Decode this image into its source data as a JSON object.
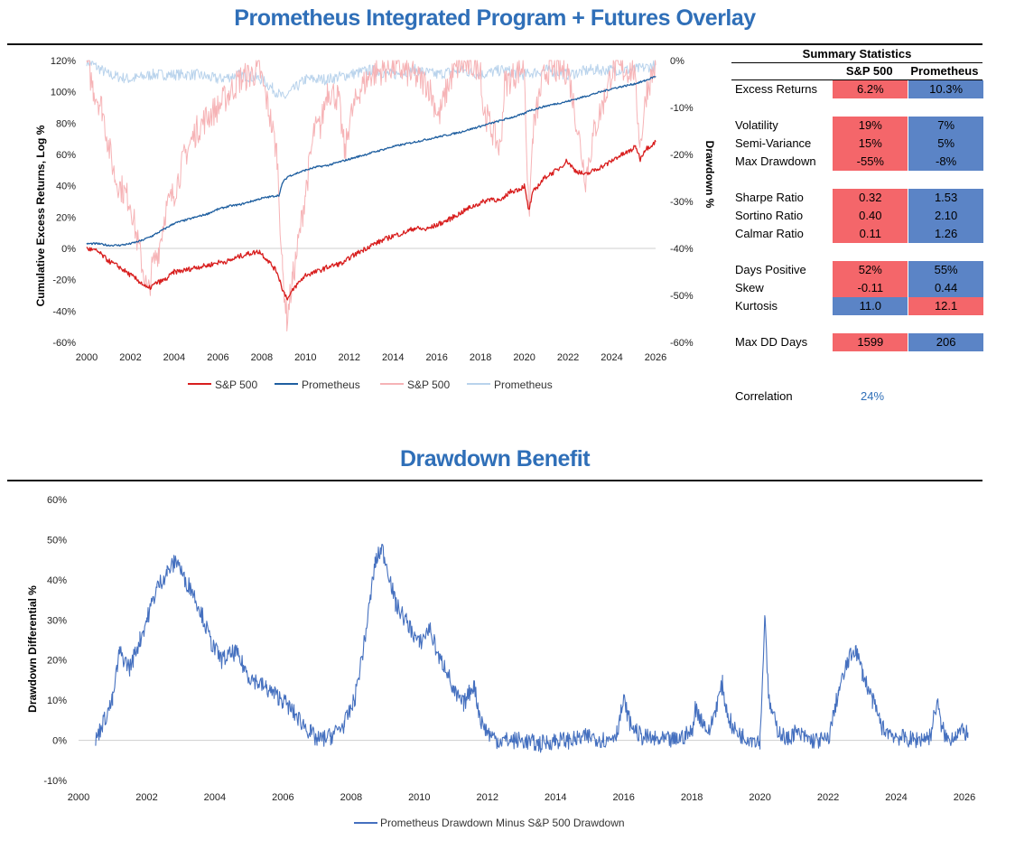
{
  "top_title": "Prometheus Integrated Program + Futures Overlay",
  "bottom_title": "Drawdown Benefit",
  "colors": {
    "sp500": "#d81e1e",
    "prometheus": "#1f5fa0",
    "sp500_dd": "#f6b3b6",
    "prometheus_dd": "#b9d3ec",
    "benefit": "#4570bf",
    "title": "#2f6fb8"
  },
  "chart_data": [
    {
      "type": "line",
      "title": "Prometheus Integrated Program + Futures Overlay",
      "xlabel": "",
      "ylabel": "Cumulative Excess Returns, Log %",
      "y2label": "Drawdown %",
      "xlim": [
        2000,
        2026
      ],
      "ylim": [
        -60,
        120
      ],
      "y2lim": [
        -60,
        0
      ],
      "x_ticks": [
        "2000",
        "2002",
        "2004",
        "2006",
        "2008",
        "2010",
        "2012",
        "2014",
        "2016",
        "2018",
        "2020",
        "2022",
        "2024",
        "2026"
      ],
      "y_ticks": [
        "120%",
        "100%",
        "80%",
        "60%",
        "40%",
        "20%",
        "0%",
        "-20%",
        "-40%",
        "-60%"
      ],
      "y2_ticks": [
        "0%",
        "-10%",
        "-20%",
        "-30%",
        "-40%",
        "-50%",
        "-60%"
      ],
      "legend": [
        "S&P 500",
        "Prometheus",
        "S&P 500",
        "Prometheus"
      ],
      "series": [
        {
          "name": "S&P 500",
          "axis": "left",
          "x": [
            2000,
            2000.5,
            2001,
            2001.5,
            2002,
            2002.5,
            2002.8,
            2003.2,
            2003.6,
            2004,
            2004.5,
            2005,
            2005.5,
            2006,
            2006.5,
            2007,
            2007.5,
            2007.9,
            2008.3,
            2008.7,
            2009.0,
            2009.2,
            2009.5,
            2010,
            2010.5,
            2011,
            2011.5,
            2011.8,
            2012,
            2012.5,
            2013,
            2013.5,
            2014,
            2014.5,
            2015,
            2015.5,
            2016,
            2016.5,
            2017,
            2017.5,
            2018,
            2018.5,
            2018.95,
            2019.3,
            2019.8,
            2020.0,
            2020.2,
            2020.4,
            2020.8,
            2021,
            2021.5,
            2021.95,
            2022.3,
            2022.8,
            2023.2,
            2023.8,
            2024.2,
            2024.8,
            2025.1,
            2025.3,
            2025.5,
            2025.8,
            2026
          ],
          "y": [
            0,
            -2,
            -8,
            -12,
            -17,
            -22,
            -26,
            -22,
            -20,
            -15,
            -14,
            -12,
            -11,
            -9,
            -8,
            -5,
            -3,
            -2,
            -8,
            -15,
            -28,
            -32,
            -25,
            -17,
            -15,
            -12,
            -10,
            -9,
            -6,
            -2,
            2,
            5,
            8,
            10,
            13,
            12,
            15,
            18,
            22,
            26,
            29,
            32,
            30,
            36,
            38,
            40,
            24,
            36,
            43,
            46,
            50,
            56,
            50,
            47,
            50,
            54,
            58,
            62,
            65,
            57,
            63,
            66,
            68
          ]
        },
        {
          "name": "Prometheus",
          "axis": "left",
          "x": [
            2000,
            2000.5,
            2001,
            2001.5,
            2002,
            2002.5,
            2003,
            2003.5,
            2004,
            2004.5,
            2005,
            2005.5,
            2006,
            2006.5,
            2007,
            2007.5,
            2008,
            2008.4,
            2008.8,
            2008.95,
            2009.2,
            2009.6,
            2010,
            2010.5,
            2011,
            2011.5,
            2012,
            2013,
            2014,
            2015,
            2016,
            2017,
            2018,
            2019,
            2020,
            2020.2,
            2020.5,
            2021,
            2022,
            2023,
            2024,
            2025,
            2025.5,
            2026
          ],
          "y": [
            3,
            3,
            2,
            2,
            3,
            5,
            8,
            12,
            16,
            18,
            20,
            22,
            25,
            27,
            28,
            30,
            32,
            33,
            34,
            42,
            46,
            48,
            50,
            52,
            53,
            55,
            57,
            61,
            65,
            68,
            71,
            74,
            78,
            82,
            86,
            88,
            89,
            91,
            94,
            98,
            102,
            105,
            107,
            110
          ]
        },
        {
          "name": "S&P 500",
          "axis": "right",
          "role": "drawdown",
          "x": [
            2000,
            2000.3,
            2000.7,
            2001.0,
            2001.3,
            2001.7,
            2002.0,
            2002.3,
            2002.6,
            2002.8,
            2003.0,
            2003.3,
            2003.6,
            2004.0,
            2004.5,
            2005,
            2005.5,
            2006,
            2006.5,
            2007.0,
            2007.5,
            2007.9,
            2008.3,
            2008.7,
            2008.95,
            2009.15,
            2009.4,
            2009.7,
            2010,
            2010.4,
            2010.7,
            2011,
            2011.5,
            2011.8,
            2012,
            2012.5,
            2013,
            2014,
            2015.6,
            2016.1,
            2016.6,
            2017,
            2018,
            2018.1,
            2018.9,
            2019.1,
            2020,
            2020.2,
            2020.4,
            2020.8,
            2021,
            2022,
            2022.8,
            2023.2,
            2023.8,
            2024,
            2025,
            2025.3,
            2025.6,
            2026
          ],
          "y": [
            0,
            -6,
            -10,
            -18,
            -25,
            -28,
            -30,
            -38,
            -45,
            -50,
            -44,
            -40,
            -32,
            -28,
            -20,
            -15,
            -12,
            -10,
            -7,
            -4,
            -3,
            -2,
            -10,
            -20,
            -45,
            -55,
            -47,
            -38,
            -28,
            -15,
            -14,
            -6,
            -8,
            -20,
            -13,
            -6,
            -3,
            -1,
            -5,
            -12,
            -4,
            -1,
            -1,
            -10,
            -19,
            -5,
            -1,
            -34,
            -15,
            -5,
            -2,
            -2,
            -25,
            -15,
            -6,
            -2,
            -2,
            -18,
            -6,
            -1
          ]
        },
        {
          "name": "Prometheus",
          "axis": "right",
          "role": "drawdown",
          "x": [
            2000,
            2001,
            2002,
            2003,
            2004,
            2005,
            2006,
            2007,
            2008,
            2008.5,
            2009,
            2010,
            2011,
            2012,
            2013,
            2014,
            2015,
            2016,
            2017,
            2018,
            2019,
            2020,
            2021,
            2022,
            2023,
            2024,
            2025,
            2026
          ],
          "y": [
            0,
            -3,
            -4,
            -3,
            -3,
            -3,
            -4,
            -3,
            -4,
            -6,
            -8,
            -4,
            -4,
            -3,
            -2,
            -3,
            -2,
            -3,
            -2,
            -3,
            -2,
            -3,
            -2,
            -3,
            -2,
            -2,
            -2,
            -1
          ]
        }
      ]
    },
    {
      "type": "line",
      "title": "Drawdown Benefit",
      "xlabel": "",
      "ylabel": "Drawdown Differential %",
      "xlim": [
        2000,
        2026
      ],
      "ylim": [
        -10,
        60
      ],
      "x_ticks": [
        "2000",
        "2002",
        "2004",
        "2006",
        "2008",
        "2010",
        "2012",
        "2014",
        "2016",
        "2018",
        "2020",
        "2022",
        "2024",
        "2026"
      ],
      "y_ticks": [
        "60%",
        "50%",
        "40%",
        "30%",
        "20%",
        "10%",
        "0%",
        "-10%"
      ],
      "legend": [
        "Prometheus Drawdown Minus S&P 500 Drawdown"
      ],
      "series": [
        {
          "name": "Prometheus Drawdown Minus S&P 500 Drawdown",
          "x": [
            2000.5,
            2000.7,
            2001.0,
            2001.2,
            2001.5,
            2001.8,
            2002.0,
            2002.3,
            2002.6,
            2002.9,
            2003.1,
            2003.3,
            2003.6,
            2003.9,
            2004.2,
            2004.6,
            2005.0,
            2005.5,
            2006.0,
            2006.5,
            2006.8,
            2007.0,
            2007.4,
            2007.8,
            2008.1,
            2008.4,
            2008.7,
            2008.9,
            2009.1,
            2009.3,
            2009.6,
            2010.0,
            2010.3,
            2010.6,
            2010.8,
            2011.0,
            2011.3,
            2011.6,
            2011.8,
            2012.0,
            2012.3,
            2013.0,
            2013.5,
            2014.0,
            2014.5,
            2015.0,
            2015.5,
            2015.8,
            2016.0,
            2016.2,
            2016.5,
            2017.0,
            2017.5,
            2018.0,
            2018.1,
            2018.5,
            2018.9,
            2019.0,
            2019.2,
            2019.5,
            2020.0,
            2020.15,
            2020.25,
            2020.5,
            2020.8,
            2021.0,
            2021.5,
            2022.0,
            2022.3,
            2022.6,
            2022.8,
            2023.0,
            2023.3,
            2023.6,
            2024.0,
            2024.5,
            2025.0,
            2025.2,
            2025.3,
            2025.5,
            2025.8,
            2026.1
          ],
          "y": [
            0,
            4,
            10,
            22,
            18,
            25,
            30,
            38,
            42,
            45,
            40,
            38,
            32,
            24,
            20,
            22,
            16,
            13,
            10,
            5,
            2,
            0,
            1,
            4,
            10,
            25,
            44,
            48,
            42,
            34,
            30,
            24,
            28,
            20,
            18,
            12,
            9,
            14,
            5,
            2,
            0,
            0,
            -1,
            0,
            0,
            1,
            0,
            2,
            10,
            4,
            1,
            0,
            0,
            2,
            8,
            2,
            14,
            8,
            3,
            1,
            0,
            32,
            10,
            3,
            0,
            2,
            0,
            0,
            12,
            20,
            23,
            17,
            10,
            3,
            1,
            0,
            1,
            10,
            4,
            0,
            2,
            2
          ]
        }
      ]
    }
  ],
  "stats": {
    "title": "Summary Statistics",
    "col1": "S&P 500",
    "col2": "Prometheus",
    "rows": [
      {
        "label": "Excess Returns",
        "sp": "6.2%",
        "pr": "10.3%",
        "sp_better": false
      },
      {
        "label": "Volatility",
        "sp": "19%",
        "pr": "7%",
        "sp_better": false
      },
      {
        "label": "Semi-Variance",
        "sp": "15%",
        "pr": "5%",
        "sp_better": false
      },
      {
        "label": "Max Drawdown",
        "sp": "-55%",
        "pr": "-8%",
        "sp_better": false
      },
      {
        "label": "Sharpe Ratio",
        "sp": "0.32",
        "pr": "1.53",
        "sp_better": false
      },
      {
        "label": "Sortino Ratio",
        "sp": "0.40",
        "pr": "2.10",
        "sp_better": false
      },
      {
        "label": "Calmar Ratio",
        "sp": "0.11",
        "pr": "1.26",
        "sp_better": false
      },
      {
        "label": "Days Positive",
        "sp": "52%",
        "pr": "55%",
        "sp_better": false
      },
      {
        "label": "Skew",
        "sp": "-0.11",
        "pr": "0.44",
        "sp_better": false
      },
      {
        "label": "Kurtosis",
        "sp": "11.0",
        "pr": "12.1",
        "sp_better": true
      },
      {
        "label": "Max DD Days",
        "sp": "1599",
        "pr": "206",
        "sp_better": false
      }
    ],
    "correlation_label": "Correlation",
    "correlation_value": "24%"
  }
}
